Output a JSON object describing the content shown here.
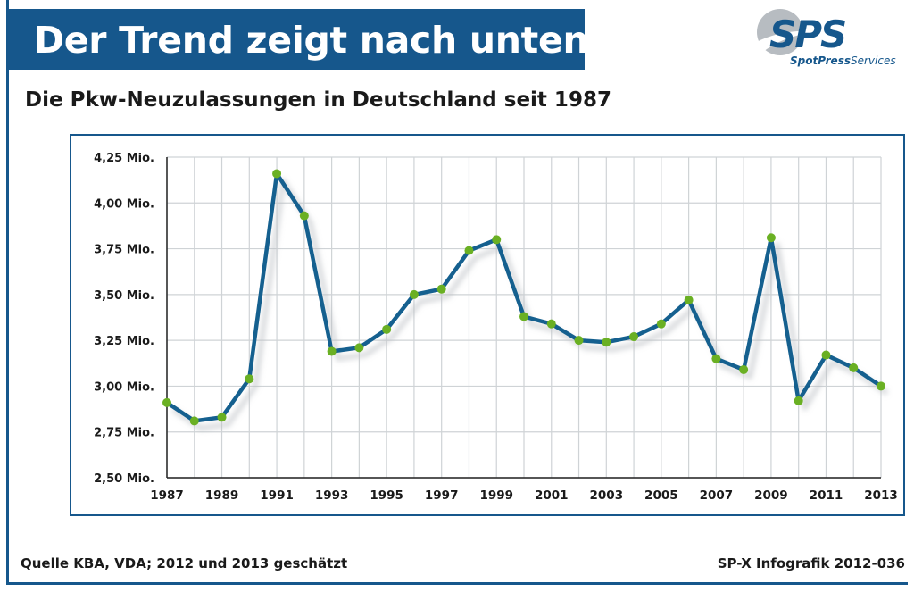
{
  "header": {
    "headline": "Der Trend zeigt nach unten",
    "subtitle": "Die Pkw-Neuzulassungen in Deutschland seit 1987"
  },
  "logo": {
    "mark": "SPS",
    "tagline_part1": "SpotPress",
    "tagline_part2": "Services"
  },
  "footer": {
    "source": "Quelle KBA, VDA; 2012 und 2013 geschätzt",
    "credit": "SP-X Infografik 2012-036"
  },
  "colors": {
    "brand": "#16578c",
    "line": "#15608f",
    "marker": "#6ab023",
    "grid": "#cfd3d6",
    "logo_gray": "#b7bcc1"
  },
  "chart_data": {
    "type": "line",
    "title": "Die Pkw-Neuzulassungen in Deutschland seit 1987",
    "xlabel": "",
    "ylabel": "",
    "x": [
      1987,
      1988,
      1989,
      1990,
      1991,
      1992,
      1993,
      1994,
      1995,
      1996,
      1997,
      1998,
      1999,
      2000,
      2001,
      2002,
      2003,
      2004,
      2005,
      2006,
      2007,
      2008,
      2009,
      2010,
      2011,
      2012,
      2013
    ],
    "series": [
      {
        "values": [
          2.91,
          2.81,
          2.83,
          3.04,
          4.16,
          3.93,
          3.19,
          3.21,
          3.31,
          3.5,
          3.53,
          3.74,
          3.8,
          3.38,
          3.34,
          3.25,
          3.24,
          3.27,
          3.34,
          3.47,
          3.15,
          3.09,
          3.81,
          2.92,
          3.17,
          3.1,
          3.0
        ]
      }
    ],
    "ylim": [
      2.5,
      4.25
    ],
    "yticks": [
      2.5,
      2.75,
      3.0,
      3.25,
      3.5,
      3.75,
      4.0,
      4.25
    ],
    "ytick_labels": [
      "2,50 Mio.",
      "2,75 Mio.",
      "3,00 Mio.",
      "3,25 Mio.",
      "3,50 Mio.",
      "3,75 Mio.",
      "4,00 Mio.",
      "4,25 Mio."
    ],
    "xtick_labels": [
      "1987",
      "1989",
      "1991",
      "1993",
      "1995",
      "1997",
      "1999",
      "2001",
      "2003",
      "2005",
      "2007",
      "2009",
      "2011",
      "2013"
    ],
    "grid": true
  }
}
